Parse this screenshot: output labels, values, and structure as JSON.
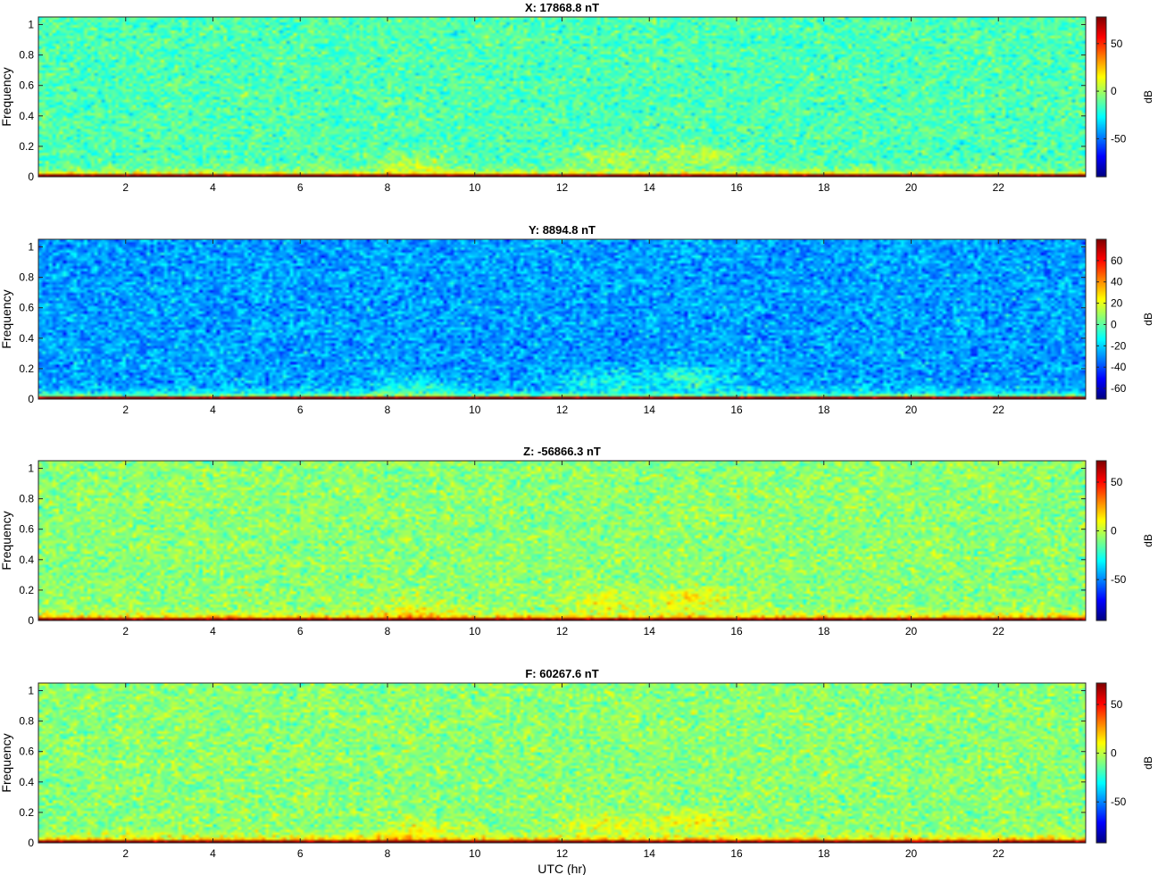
{
  "chart_data": [
    {
      "type": "heatmap",
      "title": "X: 17868.8 nT",
      "xlabel": "",
      "ylabel": "Frequency",
      "xlim": [
        0,
        24
      ],
      "ylim": [
        0,
        1.05
      ],
      "xticks": [
        2,
        4,
        6,
        8,
        10,
        12,
        14,
        16,
        18,
        20,
        22
      ],
      "yticks": [
        0,
        0.2,
        0.4,
        0.6,
        0.8,
        1
      ],
      "colorbar": {
        "label": "dB",
        "range": [
          -90,
          78
        ],
        "ticks": [
          -50,
          0,
          50
        ]
      },
      "background_db": -14,
      "noise_db": 8,
      "base_db": 80,
      "band_db": 28,
      "blobs": [
        {
          "t": 8.6,
          "f": 0.08,
          "db": 14
        },
        {
          "t": 13.0,
          "f": 0.13,
          "db": 14
        },
        {
          "t": 15.0,
          "f": 0.14,
          "db": 18
        }
      ]
    },
    {
      "type": "heatmap",
      "title": "Y: 8894.8 nT",
      "xlabel": "",
      "ylabel": "Frequency",
      "xlim": [
        0,
        24
      ],
      "ylim": [
        0,
        1.05
      ],
      "xticks": [
        2,
        4,
        6,
        8,
        10,
        12,
        14,
        16,
        18,
        20,
        22
      ],
      "yticks": [
        0,
        0.2,
        0.4,
        0.6,
        0.8,
        1
      ],
      "colorbar": {
        "label": "dB",
        "range": [
          -70,
          80
        ],
        "ticks": [
          -60,
          -40,
          -20,
          0,
          20,
          40,
          60
        ]
      },
      "background_db": -28,
      "noise_db": 8,
      "base_db": 80,
      "band_db": 36,
      "blobs": [
        {
          "t": 8.6,
          "f": 0.08,
          "db": 16
        },
        {
          "t": 13.0,
          "f": 0.13,
          "db": 16
        },
        {
          "t": 15.0,
          "f": 0.14,
          "db": 22
        }
      ]
    },
    {
      "type": "heatmap",
      "title": "Z: -56866.3 nT",
      "xlabel": "",
      "ylabel": "Frequency",
      "xlim": [
        0,
        24
      ],
      "ylim": [
        0,
        1.05
      ],
      "xticks": [
        2,
        4,
        6,
        8,
        10,
        12,
        14,
        16,
        18,
        20,
        22
      ],
      "yticks": [
        0,
        0.2,
        0.4,
        0.6,
        0.8,
        1
      ],
      "colorbar": {
        "label": "dB",
        "range": [
          -92,
          72
        ],
        "ticks": [
          -50,
          0,
          50
        ]
      },
      "background_db": -8,
      "noise_db": 8,
      "base_db": 72,
      "band_db": 28,
      "blobs": [
        {
          "t": 8.6,
          "f": 0.08,
          "db": 14
        },
        {
          "t": 13.0,
          "f": 0.13,
          "db": 14
        },
        {
          "t": 15.0,
          "f": 0.14,
          "db": 18
        }
      ]
    },
    {
      "type": "heatmap",
      "title": "F: 60267.6 nT",
      "xlabel": "UTC (hr)",
      "ylabel": "Frequency",
      "xlim": [
        0,
        24
      ],
      "ylim": [
        0,
        1.05
      ],
      "xticks": [
        2,
        4,
        6,
        8,
        10,
        12,
        14,
        16,
        18,
        20,
        22
      ],
      "yticks": [
        0,
        0.2,
        0.4,
        0.6,
        0.8,
        1
      ],
      "colorbar": {
        "label": "dB",
        "range": [
          -92,
          72
        ],
        "ticks": [
          -50,
          0,
          50
        ]
      },
      "background_db": -8,
      "noise_db": 8,
      "base_db": 72,
      "band_db": 28,
      "blobs": [
        {
          "t": 8.6,
          "f": 0.08,
          "db": 14
        },
        {
          "t": 13.0,
          "f": 0.13,
          "db": 14
        },
        {
          "t": 15.0,
          "f": 0.14,
          "db": 18
        }
      ]
    }
  ]
}
